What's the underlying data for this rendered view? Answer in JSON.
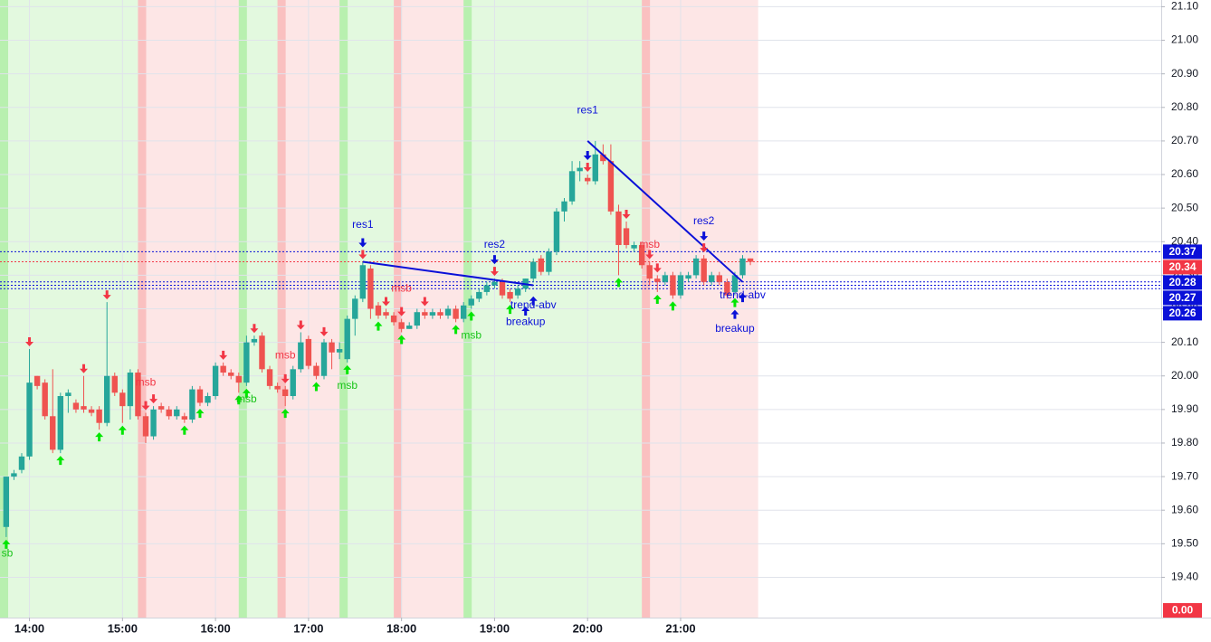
{
  "chart_data": {
    "type": "candlestick",
    "x": [
      "13:45",
      "13:50",
      "13:55",
      "14:00",
      "14:05",
      "14:10",
      "14:15",
      "14:20",
      "14:25",
      "14:30",
      "14:35",
      "14:40",
      "14:45",
      "14:50",
      "14:55",
      "15:00",
      "15:05",
      "15:10",
      "15:15",
      "15:20",
      "15:25",
      "15:30",
      "15:35",
      "15:40",
      "15:45",
      "15:50",
      "15:55",
      "16:00",
      "16:05",
      "16:10",
      "16:15",
      "16:20",
      "16:25",
      "16:30",
      "16:35",
      "16:40",
      "16:45",
      "16:50",
      "16:55",
      "17:00",
      "17:05",
      "17:10",
      "17:15",
      "17:20",
      "17:25",
      "17:30",
      "17:35",
      "17:40",
      "17:45",
      "17:50",
      "17:55",
      "18:00",
      "18:05",
      "18:10",
      "18:15",
      "18:20",
      "18:25",
      "18:30",
      "18:35",
      "18:40",
      "18:45",
      "18:50",
      "18:55",
      "19:00",
      "19:05",
      "19:10",
      "19:15",
      "19:20",
      "19:25",
      "19:30",
      "19:35",
      "19:40",
      "19:45",
      "19:50",
      "19:55",
      "20:00",
      "20:05",
      "20:10",
      "20:15",
      "20:20",
      "20:25",
      "20:30",
      "20:35",
      "20:40",
      "20:45",
      "20:50",
      "20:55",
      "21:00",
      "21:05",
      "21:10",
      "21:15",
      "21:20",
      "21:25",
      "21:30",
      "21:35",
      "21:40",
      "21:45"
    ],
    "open": [
      19.55,
      19.7,
      19.72,
      19.76,
      20.0,
      19.98,
      19.88,
      19.78,
      19.94,
      19.92,
      19.91,
      19.9,
      19.9,
      19.86,
      20.0,
      19.95,
      19.91,
      20.01,
      19.88,
      19.82,
      19.91,
      19.9,
      19.88,
      19.88,
      19.87,
      19.96,
      19.92,
      19.94,
      20.03,
      20.01,
      20.0,
      19.98,
      20.1,
      20.12,
      20.02,
      19.97,
      19.96,
      19.94,
      20.02,
      20.11,
      20.03,
      20.0,
      20.1,
      20.07,
      20.05,
      20.17,
      20.23,
      20.32,
      20.21,
      20.19,
      20.18,
      20.16,
      20.14,
      20.15,
      20.19,
      20.18,
      20.19,
      20.18,
      20.2,
      20.17,
      20.21,
      20.23,
      20.25,
      20.27,
      20.28,
      20.25,
      20.24,
      20.26,
      20.29,
      20.35,
      20.31,
      20.37,
      20.49,
      20.52,
      20.61,
      20.59,
      20.58,
      20.66,
      20.64,
      20.49,
      20.44,
      20.38,
      20.39,
      20.33,
      20.29,
      20.28,
      20.3,
      20.24,
      20.29,
      20.3,
      20.35,
      20.28,
      20.3,
      20.28,
      20.25,
      20.3,
      20.35
    ],
    "high": [
      19.7,
      19.72,
      19.77,
      20.08,
      20.0,
      19.99,
      20.02,
      19.95,
      19.96,
      19.93,
      20.0,
      19.91,
      19.91,
      20.22,
      20.01,
      19.96,
      20.02,
      20.02,
      19.89,
      19.91,
      19.92,
      19.91,
      19.91,
      19.89,
      19.97,
      19.97,
      19.95,
      20.04,
      20.04,
      20.02,
      20.01,
      20.12,
      20.12,
      20.13,
      20.03,
      19.98,
      19.97,
      20.03,
      20.13,
      20.12,
      20.04,
      20.11,
      20.11,
      20.1,
      20.18,
      20.24,
      20.34,
      20.33,
      20.22,
      20.2,
      20.19,
      20.17,
      20.16,
      20.2,
      20.2,
      20.2,
      20.2,
      20.21,
      20.21,
      20.22,
      20.24,
      20.26,
      20.28,
      20.29,
      20.29,
      20.26,
      20.27,
      20.29,
      20.35,
      20.36,
      20.38,
      20.5,
      20.53,
      20.64,
      20.64,
      20.6,
      20.7,
      20.69,
      20.69,
      20.51,
      20.46,
      20.4,
      20.4,
      20.34,
      20.3,
      20.31,
      20.31,
      20.31,
      20.31,
      20.36,
      20.36,
      20.31,
      20.31,
      20.29,
      20.31,
      20.36,
      20.35
    ],
    "low": [
      19.52,
      19.69,
      19.71,
      19.75,
      19.96,
      19.87,
      19.77,
      19.77,
      19.89,
      19.89,
      19.89,
      19.88,
      19.84,
      19.85,
      19.94,
      19.86,
      19.87,
      19.87,
      19.8,
      19.81,
      19.89,
      19.87,
      19.87,
      19.86,
      19.86,
      19.91,
      19.91,
      19.93,
      20.0,
      19.99,
      19.95,
      19.97,
      20.09,
      20.01,
      19.96,
      19.95,
      19.91,
      19.93,
      20.01,
      20.02,
      19.99,
      19.99,
      20.02,
      20.05,
      20.04,
      20.12,
      20.22,
      20.17,
      20.17,
      20.17,
      20.15,
      20.13,
      20.14,
      20.14,
      20.17,
      20.17,
      20.17,
      20.17,
      20.16,
      20.16,
      20.2,
      20.22,
      20.24,
      20.26,
      20.23,
      20.22,
      20.23,
      20.25,
      20.28,
      20.3,
      20.3,
      20.36,
      20.46,
      20.51,
      20.58,
      20.57,
      20.57,
      20.63,
      20.48,
      20.3,
      20.38,
      20.37,
      20.32,
      20.27,
      20.25,
      20.27,
      20.23,
      20.23,
      20.28,
      20.29,
      20.27,
      20.27,
      20.27,
      20.23,
      20.24,
      20.29,
      20.33
    ],
    "close": [
      19.7,
      19.71,
      19.76,
      19.98,
      19.97,
      19.88,
      19.78,
      19.94,
      19.95,
      19.9,
      19.9,
      19.89,
      19.86,
      20.0,
      19.95,
      19.91,
      20.01,
      19.88,
      19.82,
      19.9,
      19.9,
      19.88,
      19.9,
      19.87,
      19.96,
      19.92,
      19.94,
      20.03,
      20.01,
      20.0,
      19.98,
      20.1,
      20.11,
      20.02,
      19.97,
      19.96,
      19.94,
      20.02,
      20.1,
      20.03,
      20.0,
      20.1,
      20.07,
      20.08,
      20.17,
      20.23,
      20.33,
      20.2,
      20.18,
      20.18,
      20.16,
      20.14,
      20.15,
      20.19,
      20.18,
      20.19,
      20.18,
      20.2,
      20.17,
      20.21,
      20.23,
      20.25,
      20.27,
      20.28,
      20.24,
      20.23,
      20.26,
      20.29,
      20.34,
      20.31,
      20.37,
      20.49,
      20.52,
      20.61,
      20.62,
      20.58,
      20.66,
      20.64,
      20.49,
      20.39,
      20.39,
      20.39,
      20.33,
      20.29,
      20.28,
      20.3,
      20.24,
      20.3,
      20.3,
      20.35,
      20.28,
      20.3,
      20.28,
      20.24,
      20.3,
      20.35,
      20.34
    ],
    "up_color": "#26a69a",
    "down_color": "#ef5350",
    "xlim": [
      "13:41",
      "02:10"
    ],
    "xticks": [
      "14:00",
      "15:00",
      "16:00",
      "17:00",
      "18:00",
      "19:00",
      "20:00",
      "21:00"
    ],
    "ylim": [
      19.28,
      21.12
    ],
    "yticks": [
      {
        "value": 19.4,
        "label": "19.40"
      },
      {
        "value": 19.5,
        "label": "19.50"
      },
      {
        "value": 19.6,
        "label": "19.60"
      },
      {
        "value": 19.7,
        "label": "19.70"
      },
      {
        "value": 19.8,
        "label": "19.80"
      },
      {
        "value": 19.9,
        "label": "19.90"
      },
      {
        "value": 20.0,
        "label": "20.00"
      },
      {
        "value": 20.1,
        "label": "20.10"
      },
      {
        "value": 20.2,
        "label": "20.20"
      },
      {
        "value": 20.3,
        "label": "20.30"
      },
      {
        "value": 20.4,
        "label": "20.40"
      },
      {
        "value": 20.5,
        "label": "20.50"
      },
      {
        "value": 20.6,
        "label": "20.60"
      },
      {
        "value": 20.7,
        "label": "20.70"
      },
      {
        "value": 20.8,
        "label": "20.80"
      },
      {
        "value": 20.9,
        "label": "20.90"
      },
      {
        "value": 21.0,
        "label": "21.00"
      },
      {
        "value": 21.1,
        "label": "21.10"
      }
    ],
    "grid": true,
    "bands": [
      {
        "start": "13:41",
        "end": "15:10",
        "color": "#8ee87f"
      },
      {
        "start": "15:10",
        "end": "16:15",
        "color": "#f79a9a"
      },
      {
        "start": "16:15",
        "end": "16:40",
        "color": "#8ee87f"
      },
      {
        "start": "16:40",
        "end": "17:20",
        "color": "#f79a9a"
      },
      {
        "start": "17:20",
        "end": "17:55",
        "color": "#8ee87f"
      },
      {
        "start": "17:55",
        "end": "18:40",
        "color": "#f79a9a"
      },
      {
        "start": "18:40",
        "end": "20:35",
        "color": "#8ee87f"
      },
      {
        "start": "20:35",
        "end": "21:50",
        "color": "#f79a9a"
      }
    ],
    "down_arrows": {
      "color": "#f23645",
      "x": [
        "14:00",
        "14:35",
        "14:50",
        "15:15",
        "15:20",
        "16:05",
        "16:25",
        "16:45",
        "16:55",
        "17:10",
        "17:35",
        "17:50",
        "18:00",
        "18:15",
        "19:00",
        "20:00",
        "20:25",
        "20:40",
        "20:45",
        "21:15"
      ]
    },
    "up_arrows": {
      "color": "#00e600",
      "x": [
        "13:45",
        "14:20",
        "14:45",
        "15:00",
        "15:40",
        "15:50",
        "16:15",
        "16:20",
        "16:45",
        "17:05",
        "17:25",
        "17:45",
        "18:00",
        "18:35",
        "18:45",
        "19:10",
        "20:20",
        "20:45",
        "20:55",
        "21:35"
      ]
    },
    "signal_down": {
      "color": "#0a10d8",
      "x": [
        "17:35",
        "19:00",
        "20:00",
        "21:15"
      ]
    },
    "signal_up": {
      "color": "#0a10d8",
      "x": [
        "19:20",
        "19:25",
        "21:35",
        "21:40"
      ]
    },
    "annotations": [
      {
        "text": "sb",
        "x": "13:45",
        "y": 19.47,
        "color": "#18c418"
      },
      {
        "text": "msb",
        "x": "15:15",
        "y": 19.98,
        "color": "#f23645"
      },
      {
        "text": "msb",
        "x": "16:20",
        "y": 19.93,
        "color": "#18c418"
      },
      {
        "text": "msb",
        "x": "16:45",
        "y": 20.06,
        "color": "#f23645"
      },
      {
        "text": "msb",
        "x": "17:25",
        "y": 19.97,
        "color": "#18c418"
      },
      {
        "text": "msb",
        "x": "18:00",
        "y": 20.26,
        "color": "#f23645"
      },
      {
        "text": "msb",
        "x": "18:45",
        "y": 20.12,
        "color": "#18c418"
      },
      {
        "text": "msb",
        "x": "20:40",
        "y": 20.39,
        "color": "#f23645"
      },
      {
        "text": "res1",
        "x": "17:35",
        "y": 20.45,
        "color": "#0a10d8"
      },
      {
        "text": "res2",
        "x": "19:00",
        "y": 20.39,
        "color": "#0a10d8"
      },
      {
        "text": "res1",
        "x": "20:00",
        "y": 20.79,
        "color": "#0a10d8"
      },
      {
        "text": "res2",
        "x": "21:15",
        "y": 20.46,
        "color": "#0a10d8"
      },
      {
        "text": "trend-abv",
        "x": "19:25",
        "y": 20.21,
        "color": "#0a10d8"
      },
      {
        "text": "breakup",
        "x": "19:20",
        "y": 20.16,
        "color": "#0a10d8"
      },
      {
        "text": "trend-abv",
        "x": "21:40",
        "y": 20.24,
        "color": "#0a10d8"
      },
      {
        "text": "breakup",
        "x": "21:35",
        "y": 20.14,
        "color": "#0a10d8"
      }
    ],
    "trendlines": [
      {
        "x": [
          "17:35",
          "19:25"
        ],
        "y": [
          20.34,
          20.27
        ],
        "color": "#0a10d8"
      },
      {
        "x": [
          "20:00",
          "21:40"
        ],
        "y": [
          20.7,
          20.28
        ],
        "color": "#0a10d8"
      }
    ],
    "price_lines": [
      {
        "value": 20.37,
        "label": "20.37",
        "color": "#0a10d8"
      },
      {
        "value": 20.34,
        "label": "20.34",
        "color": "#f23645"
      },
      {
        "value": 20.28,
        "label": "20.28",
        "color": "#0a10d8"
      },
      {
        "value": 20.27,
        "label": "20.27",
        "color": "#0a10d8"
      },
      {
        "value": 20.26,
        "label": "20.26",
        "color": "#0a10d8"
      }
    ],
    "bottom_label": {
      "label": "0.00",
      "color": "#f23645"
    }
  }
}
